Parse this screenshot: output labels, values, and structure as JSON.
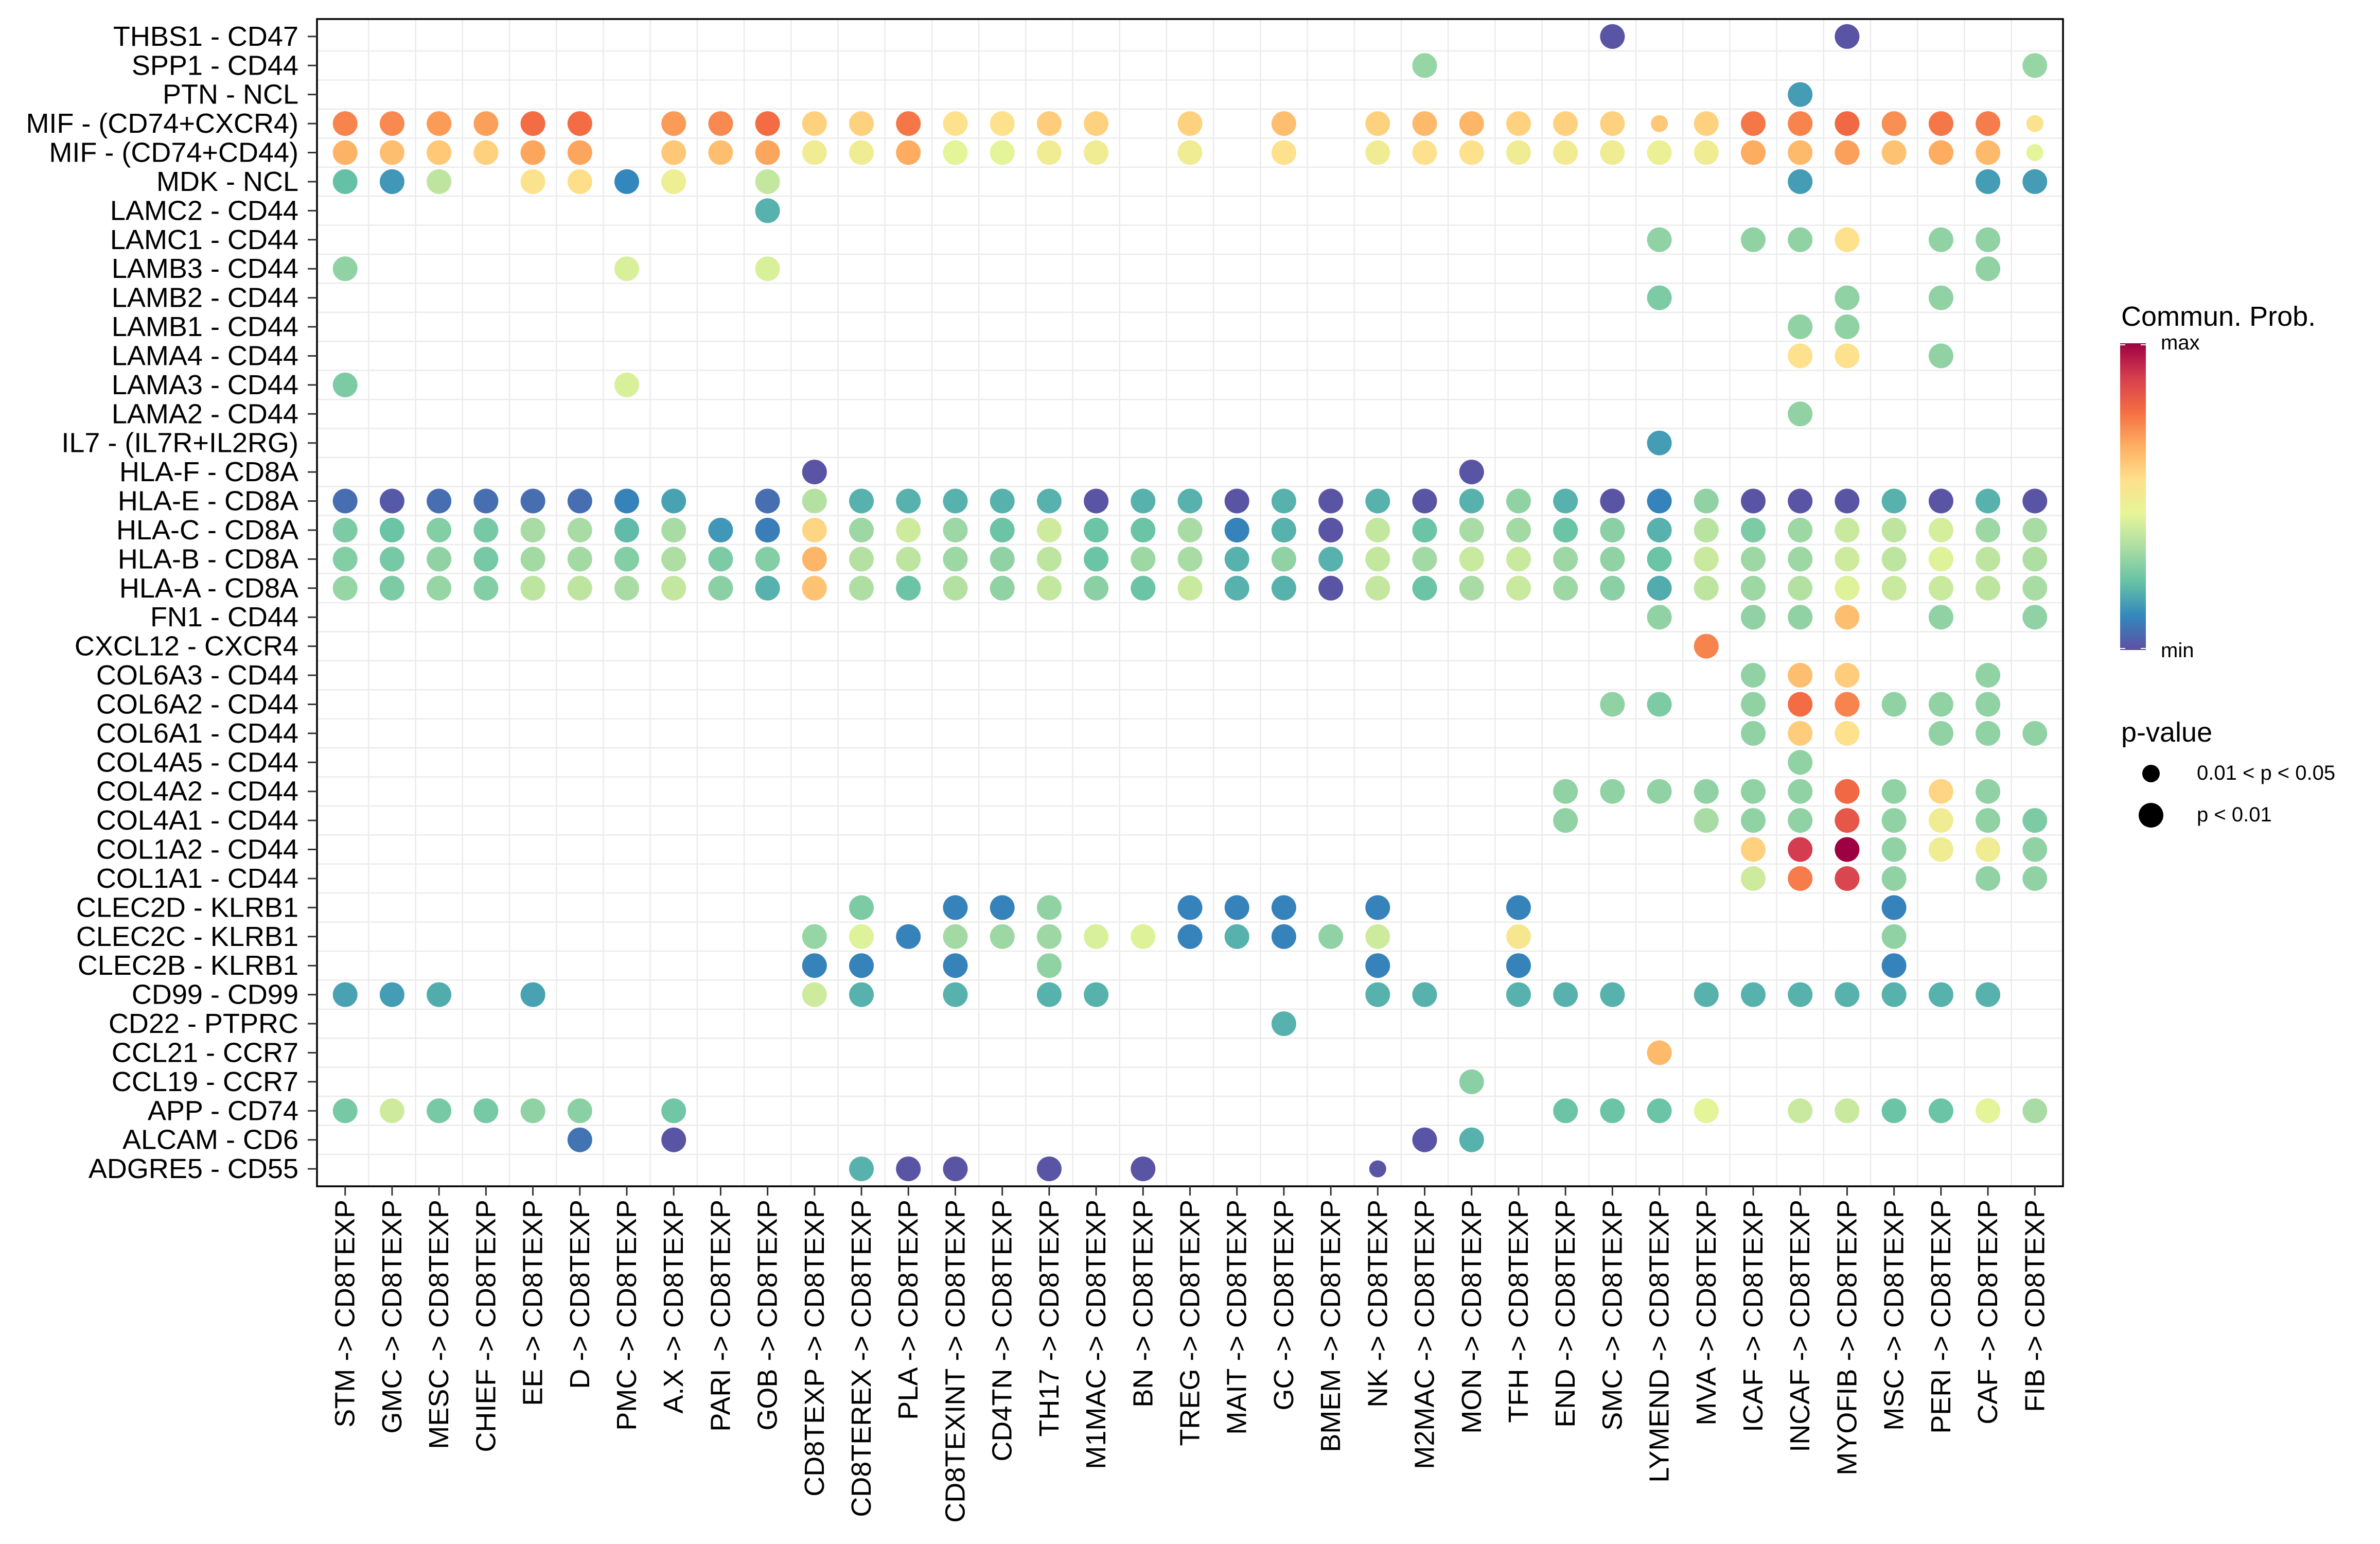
{
  "chart_data": {
    "type": "scatter",
    "subtype": "bubble-dotplot",
    "title": "",
    "xlabel": "",
    "ylabel": "",
    "grid": true,
    "legend_placement": "right",
    "x_categories": [
      "STM -> CD8TEXP",
      "GMC -> CD8TEXP",
      "MESC -> CD8TEXP",
      "CHIEF -> CD8TEXP",
      "EE -> CD8TEXP",
      "D -> CD8TEXP",
      "PMC -> CD8TEXP",
      "A.X -> CD8TEXP",
      "PARI -> CD8TEXP",
      "GOB -> CD8TEXP",
      "CD8TEXP -> CD8TEXP",
      "CD8TEREX -> CD8TEXP",
      "PLA -> CD8TEXP",
      "CD8TEXINT -> CD8TEXP",
      "CD4TN -> CD8TEXP",
      "TH17 -> CD8TEXP",
      "M1MAC -> CD8TEXP",
      "BN -> CD8TEXP",
      "TREG -> CD8TEXP",
      "MAIT -> CD8TEXP",
      "GC -> CD8TEXP",
      "BMEM -> CD8TEXP",
      "NK -> CD8TEXP",
      "M2MAC -> CD8TEXP",
      "MON -> CD8TEXP",
      "TFH -> CD8TEXP",
      "END -> CD8TEXP",
      "SMC -> CD8TEXP",
      "LYMEND -> CD8TEXP",
      "MVA -> CD8TEXP",
      "ICAF -> CD8TEXP",
      "INCAF -> CD8TEXP",
      "MYOFIB -> CD8TEXP",
      "MSC -> CD8TEXP",
      "PERI -> CD8TEXP",
      "CAF -> CD8TEXP",
      "FIB -> CD8TEXP"
    ],
    "color_legend": {
      "title": "Commun. Prob.",
      "max_label": "max",
      "min_label": "min",
      "value_range": [
        0,
        1
      ],
      "palette_min_to_max": [
        "#5E4FA2",
        "#3288BD",
        "#66C2A5",
        "#ABDDA4",
        "#E6F598",
        "#FEE08B",
        "#FDAE61",
        "#F46D43",
        "#D53E4F",
        "#9E0142"
      ]
    },
    "size_legend": {
      "title": "p-value",
      "entries": [
        {
          "label": "0.01 < p < 0.05",
          "class": "small"
        },
        {
          "label": "p < 0.01",
          "class": "large"
        }
      ]
    },
    "rows": [
      {
        "pair": "THBS1 - CD47",
        "points": {
          "SMC": 0.01,
          "MYOFIB": 0.01
        }
      },
      {
        "pair": "SPP1 - CD44",
        "points": {
          "M2MAC": 0.3,
          "FIB": 0.3
        }
      },
      {
        "pair": "PTN - NCL",
        "points": {
          "INCAF": 0.15
        }
      },
      {
        "pair": "MIF - (CD74+CXCR4)",
        "points": {
          "STM": 0.74,
          "GMC": 0.73,
          "MESC": 0.7,
          "CHIEF": 0.69,
          "EE": 0.78,
          "D": 0.78,
          "A.X": 0.7,
          "PARI": 0.73,
          "GOB": 0.78,
          "CD8TEXP": 0.59,
          "CD8TEREX": 0.59,
          "PLA": 0.76,
          "CD8TEXINT": 0.55,
          "CD4TN": 0.55,
          "TH17": 0.6,
          "M1MAC": 0.59,
          "TREG": 0.59,
          "GC": 0.63,
          "NK": 0.59,
          "M2MAC": 0.64,
          "MON": 0.65,
          "TFH": 0.59,
          "END": 0.59,
          "SMC": 0.59,
          "LYMEND": 0.61,
          "MVA": 0.59,
          "ICAF": 0.76,
          "INCAF": 0.74,
          "MYOFIB": 0.79,
          "MSC": 0.72,
          "PERI": 0.76,
          "CAF": 0.75,
          "FIB": 0.54
        },
        "p_between_0_01_and_0_05": [
          "LYMEND",
          "FIB"
        ]
      },
      {
        "pair": "MIF - (CD74+CD44)",
        "points": {
          "STM": 0.655,
          "GMC": 0.63,
          "MESC": 0.61,
          "CHIEF": 0.59,
          "EE": 0.68,
          "D": 0.68,
          "A.X": 0.61,
          "PARI": 0.63,
          "GOB": 0.68,
          "CD8TEXP": 0.49,
          "CD8TEREX": 0.49,
          "PLA": 0.67,
          "CD8TEXINT": 0.44,
          "CD4TN": 0.44,
          "TH17": 0.49,
          "M1MAC": 0.49,
          "TREG": 0.49,
          "GC": 0.55,
          "NK": 0.49,
          "M2MAC": 0.55,
          "MON": 0.55,
          "TFH": 0.49,
          "END": 0.5,
          "SMC": 0.49,
          "LYMEND": 0.47,
          "MVA": 0.49,
          "ICAF": 0.67,
          "INCAF": 0.64,
          "MYOFIB": 0.69,
          "MSC": 0.62,
          "PERI": 0.67,
          "CAF": 0.64,
          "FIB": 0.44
        },
        "p_between_0_01_and_0_05": [
          "FIB"
        ]
      },
      {
        "pair": "MDK - NCL",
        "points": {
          "STM": 0.22,
          "GMC": 0.14,
          "MESC": 0.37,
          "EE": 0.54,
          "D": 0.56,
          "PMC": 0.11,
          "A.X": 0.48,
          "GOB": 0.38,
          "INCAF": 0.15,
          "CAF": 0.15,
          "FIB": 0.15
        }
      },
      {
        "pair": "LAMC2 - CD44",
        "points": {
          "GOB": 0.19
        }
      },
      {
        "pair": "LAMC1 - CD44",
        "points": {
          "LYMEND": 0.29,
          "ICAF": 0.29,
          "INCAF": 0.29,
          "MYOFIB": 0.55,
          "PERI": 0.29,
          "CAF": 0.29
        }
      },
      {
        "pair": "LAMB3 - CD44",
        "points": {
          "STM": 0.29,
          "PMC": 0.42,
          "GOB": 0.42,
          "CAF": 0.29
        }
      },
      {
        "pair": "LAMB2 - CD44",
        "points": {
          "LYMEND": 0.26,
          "MYOFIB": 0.29,
          "PERI": 0.29
        }
      },
      {
        "pair": "LAMB1 - CD44",
        "points": {
          "INCAF": 0.29,
          "MYOFIB": 0.29
        }
      },
      {
        "pair": "LAMA4 - CD44",
        "points": {
          "INCAF": 0.55,
          "MYOFIB": 0.55,
          "PERI": 0.29
        }
      },
      {
        "pair": "LAMA3 - CD44",
        "points": {
          "STM": 0.26,
          "PMC": 0.42
        }
      },
      {
        "pair": "LAMA2 - CD44",
        "points": {
          "INCAF": 0.29
        }
      },
      {
        "pair": "IL7 - (IL7R+IL2RG)",
        "points": {
          "LYMEND": 0.15
        }
      },
      {
        "pair": "HLA-F - CD8A",
        "points": {
          "CD8TEXP": 0.01,
          "MON": 0.01
        }
      },
      {
        "pair": "HLA-E - CD8A",
        "points": {
          "STM": 0.06,
          "GMC": 0.02,
          "MESC": 0.06,
          "CHIEF": 0.06,
          "EE": 0.06,
          "D": 0.06,
          "PMC": 0.1,
          "A.X": 0.16,
          "GOB": 0.06,
          "CD8TEXP": 0.35,
          "CD8TEREX": 0.19,
          "PLA": 0.19,
          "CD8TEXINT": 0.19,
          "CD4TN": 0.19,
          "TH17": 0.19,
          "M1MAC": 0.01,
          "BN": 0.19,
          "TREG": 0.19,
          "MAIT": 0.01,
          "GC": 0.19,
          "BMEM": 0.01,
          "NK": 0.19,
          "M2MAC": 0.01,
          "MON": 0.19,
          "TFH": 0.29,
          "END": 0.19,
          "SMC": 0.01,
          "LYMEND": 0.1,
          "MVA": 0.29,
          "ICAF": 0.01,
          "INCAF": 0.01,
          "MYOFIB": 0.01,
          "MSC": 0.19,
          "PERI": 0.01,
          "CAF": 0.19,
          "FIB": 0.01
        }
      },
      {
        "pair": "HLA-C - CD8A",
        "points": {
          "STM": 0.26,
          "GMC": 0.23,
          "MESC": 0.27,
          "CHIEF": 0.25,
          "EE": 0.33,
          "D": 0.33,
          "PMC": 0.21,
          "A.X": 0.33,
          "PARI": 0.14,
          "GOB": 0.09,
          "CD8TEXP": 0.58,
          "CD8TEREX": 0.31,
          "PLA": 0.4,
          "CD8TEXINT": 0.31,
          "CD4TN": 0.23,
          "TH17": 0.4,
          "M1MAC": 0.23,
          "BN": 0.23,
          "TREG": 0.33,
          "MAIT": 0.1,
          "GC": 0.19,
          "BMEM": 0.01,
          "NK": 0.38,
          "M2MAC": 0.23,
          "MON": 0.33,
          "TFH": 0.32,
          "END": 0.23,
          "SMC": 0.28,
          "LYMEND": 0.19,
          "MVA": 0.36,
          "ICAF": 0.26,
          "INCAF": 0.31,
          "MYOFIB": 0.39,
          "MSC": 0.37,
          "PERI": 0.41,
          "CAF": 0.31,
          "FIB": 0.33
        }
      },
      {
        "pair": "HLA-B - CD8A",
        "points": {
          "STM": 0.27,
          "GMC": 0.25,
          "MESC": 0.29,
          "CHIEF": 0.25,
          "EE": 0.32,
          "D": 0.32,
          "PMC": 0.27,
          "A.X": 0.34,
          "PARI": 0.26,
          "GOB": 0.27,
          "CD8TEXP": 0.65,
          "CD8TEREX": 0.35,
          "PLA": 0.37,
          "CD8TEXINT": 0.31,
          "CD4TN": 0.29,
          "TH17": 0.37,
          "M1MAC": 0.23,
          "BN": 0.31,
          "TREG": 0.33,
          "MAIT": 0.19,
          "GC": 0.29,
          "BMEM": 0.19,
          "NK": 0.38,
          "M2MAC": 0.32,
          "MON": 0.39,
          "TFH": 0.39,
          "END": 0.31,
          "SMC": 0.29,
          "LYMEND": 0.23,
          "MVA": 0.39,
          "ICAF": 0.31,
          "INCAF": 0.31,
          "MYOFIB": 0.4,
          "MSC": 0.37,
          "PERI": 0.43,
          "CAF": 0.37,
          "FIB": 0.34
        }
      },
      {
        "pair": "HLA-A - CD8A",
        "points": {
          "STM": 0.3,
          "GMC": 0.26,
          "MESC": 0.3,
          "CHIEF": 0.27,
          "EE": 0.37,
          "D": 0.37,
          "PMC": 0.33,
          "A.X": 0.38,
          "PARI": 0.28,
          "GOB": 0.19,
          "CD8TEXP": 0.62,
          "CD8TEREX": 0.34,
          "PLA": 0.23,
          "CD8TEXINT": 0.35,
          "CD4TN": 0.29,
          "TH17": 0.38,
          "M1MAC": 0.28,
          "BN": 0.23,
          "TREG": 0.39,
          "MAIT": 0.19,
          "GC": 0.19,
          "BMEM": 0.01,
          "NK": 0.38,
          "M2MAC": 0.23,
          "MON": 0.33,
          "TFH": 0.39,
          "END": 0.31,
          "SMC": 0.28,
          "LYMEND": 0.18,
          "MVA": 0.37,
          "ICAF": 0.31,
          "INCAF": 0.35,
          "MYOFIB": 0.43,
          "MSC": 0.39,
          "PERI": 0.39,
          "CAF": 0.37,
          "FIB": 0.33
        }
      },
      {
        "pair": "FN1 - CD44",
        "points": {
          "LYMEND": 0.29,
          "ICAF": 0.29,
          "INCAF": 0.29,
          "MYOFIB": 0.63,
          "PERI": 0.29,
          "FIB": 0.29
        }
      },
      {
        "pair": "CXCL12 - CXCR4",
        "points": {
          "MVA": 0.74
        }
      },
      {
        "pair": "COL6A3 - CD44",
        "points": {
          "ICAF": 0.29,
          "INCAF": 0.63,
          "MYOFIB": 0.6,
          "CAF": 0.29
        }
      },
      {
        "pair": "COL6A2 - CD44",
        "points": {
          "SMC": 0.29,
          "LYMEND": 0.26,
          "ICAF": 0.29,
          "INCAF": 0.78,
          "MYOFIB": 0.74,
          "MSC": 0.29,
          "PERI": 0.29,
          "CAF": 0.29
        }
      },
      {
        "pair": "COL6A1 - CD44",
        "points": {
          "ICAF": 0.29,
          "INCAF": 0.6,
          "MYOFIB": 0.55,
          "PERI": 0.29,
          "CAF": 0.29,
          "FIB": 0.29
        }
      },
      {
        "pair": "COL4A5 - CD44",
        "points": {
          "INCAF": 0.29
        }
      },
      {
        "pair": "COL4A2 - CD44",
        "points": {
          "END": 0.29,
          "SMC": 0.29,
          "LYMEND": 0.29,
          "MVA": 0.29,
          "ICAF": 0.29,
          "INCAF": 0.29,
          "MYOFIB": 0.79,
          "MSC": 0.29,
          "PERI": 0.58,
          "CAF": 0.29
        }
      },
      {
        "pair": "COL4A1 - CD44",
        "points": {
          "END": 0.29,
          "MVA": 0.33,
          "ICAF": 0.29,
          "INCAF": 0.29,
          "MYOFIB": 0.83,
          "MSC": 0.29,
          "PERI": 0.49,
          "CAF": 0.29,
          "FIB": 0.26
        }
      },
      {
        "pair": "COL1A2 - CD44",
        "points": {
          "ICAF": 0.59,
          "INCAF": 0.89,
          "MYOFIB": 1.0,
          "MSC": 0.29,
          "PERI": 0.49,
          "CAF": 0.49,
          "FIB": 0.29
        }
      },
      {
        "pair": "COL1A1 - CD44",
        "points": {
          "ICAF": 0.4,
          "INCAF": 0.75,
          "MYOFIB": 0.87,
          "MSC": 0.29,
          "CAF": 0.29,
          "FIB": 0.29
        }
      },
      {
        "pair": "CLEC2D - KLRB1",
        "points": {
          "CD8TEREX": 0.26,
          "CD8TEXINT": 0.1,
          "CD4TN": 0.1,
          "TH17": 0.29,
          "TREG": 0.1,
          "MAIT": 0.1,
          "GC": 0.1,
          "NK": 0.1,
          "TFH": 0.1,
          "MSC": 0.1
        }
      },
      {
        "pair": "CLEC2C - KLRB1",
        "points": {
          "CD8TEXP": 0.3,
          "CD8TEREX": 0.43,
          "PLA": 0.1,
          "CD8TEXINT": 0.32,
          "CD4TN": 0.31,
          "TH17": 0.31,
          "M1MAC": 0.42,
          "BN": 0.43,
          "TREG": 0.1,
          "MAIT": 0.19,
          "GC": 0.1,
          "BMEM": 0.29,
          "NK": 0.4,
          "TFH": 0.52,
          "MSC": 0.29
        }
      },
      {
        "pair": "CLEC2B - KLRB1",
        "points": {
          "CD8TEXP": 0.1,
          "CD8TEREX": 0.1,
          "CD8TEXINT": 0.1,
          "TH17": 0.29,
          "NK": 0.1,
          "TFH": 0.1,
          "MSC": 0.1
        }
      },
      {
        "pair": "CD99 - CD99",
        "points": {
          "STM": 0.16,
          "GMC": 0.15,
          "MESC": 0.18,
          "EE": 0.16,
          "CD8TEXP": 0.4,
          "CD8TEREX": 0.19,
          "CD8TEXINT": 0.19,
          "TH17": 0.19,
          "M1MAC": 0.19,
          "NK": 0.19,
          "M2MAC": 0.19,
          "TFH": 0.19,
          "END": 0.19,
          "SMC": 0.19,
          "MVA": 0.19,
          "ICAF": 0.19,
          "INCAF": 0.19,
          "MYOFIB": 0.19,
          "MSC": 0.19,
          "PERI": 0.19,
          "CAF": 0.19
        }
      },
      {
        "pair": "CD22 - PTPRC",
        "points": {
          "GC": 0.19
        }
      },
      {
        "pair": "CCL21 - CCR7",
        "points": {
          "LYMEND": 0.64
        }
      },
      {
        "pair": "CCL19 - CCR7",
        "points": {
          "MON": 0.28
        }
      },
      {
        "pair": "APP - CD74",
        "points": {
          "STM": 0.25,
          "GMC": 0.4,
          "MESC": 0.25,
          "CHIEF": 0.25,
          "EE": 0.29,
          "D": 0.28,
          "A.X": 0.24,
          "END": 0.23,
          "SMC": 0.23,
          "LYMEND": 0.23,
          "MVA": 0.44,
          "INCAF": 0.39,
          "MYOFIB": 0.39,
          "MSC": 0.23,
          "PERI": 0.23,
          "CAF": 0.44,
          "FIB": 0.33
        }
      },
      {
        "pair": "ALCAM - CD6",
        "points": {
          "D": 0.07,
          "A.X": 0.01,
          "M2MAC": 0.01,
          "MON": 0.19
        }
      },
      {
        "pair": "ADGRE5 - CD55",
        "points": {
          "CD8TEREX": 0.19,
          "PLA": 0.01,
          "CD8TEXINT": 0.01,
          "TH17": 0.01,
          "BN": 0.01,
          "NK": 0.01
        },
        "p_between_0_01_and_0_05": [
          "NK"
        ]
      }
    ]
  }
}
